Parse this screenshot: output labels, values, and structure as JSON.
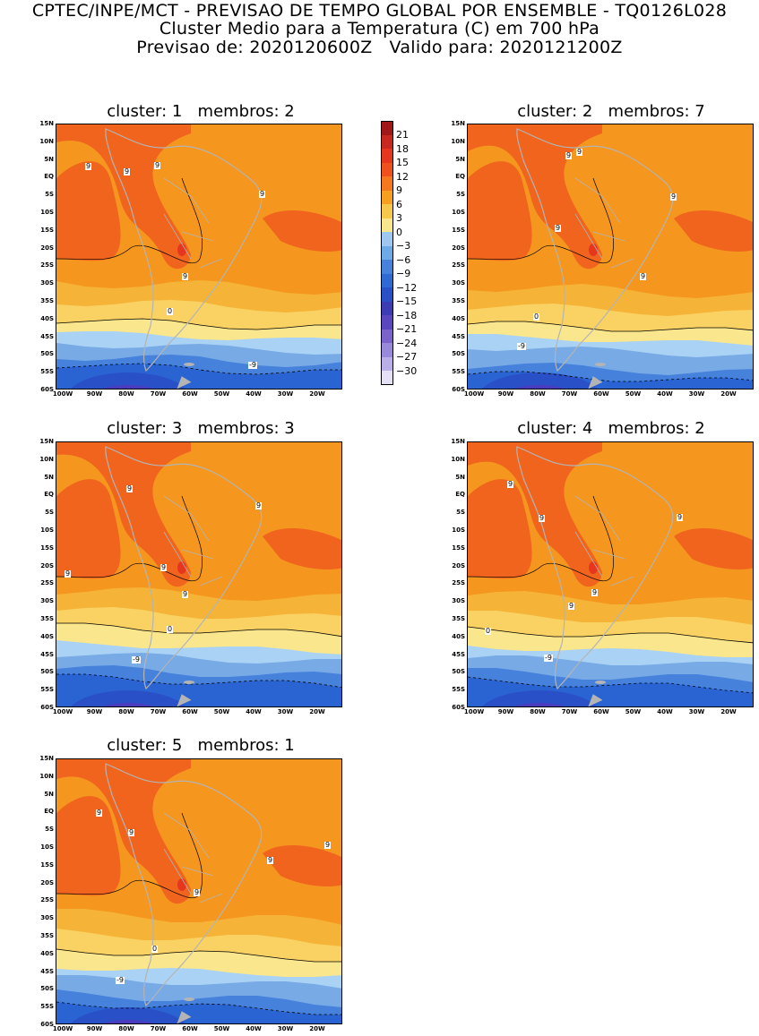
{
  "header": {
    "line1": "CPTEC/INPE/MCT - PREVISAO DE TEMPO GLOBAL POR ENSEMBLE - TQ0126L028",
    "line2": "Cluster Medio para a Temperatura (C) em 700 hPa",
    "line3": "Previsao de: 2020120600Z   Valido para: 2020121200Z"
  },
  "panels": [
    {
      "title": "cluster: 1   membros: 2"
    },
    {
      "title": "cluster: 2   membros: 7"
    },
    {
      "title": "cluster: 3   membros: 3"
    },
    {
      "title": "cluster: 4   membros: 2"
    },
    {
      "title": "cluster: 5   membros: 1"
    }
  ],
  "axes": {
    "lat_labels": [
      "15N",
      "10N",
      "5N",
      "EQ",
      "5S",
      "10S",
      "15S",
      "20S",
      "25S",
      "30S",
      "35S",
      "40S",
      "45S",
      "50S",
      "55S",
      "60S"
    ],
    "lon_labels": [
      "100W",
      "90W",
      "80W",
      "70W",
      "60W",
      "50W",
      "40W",
      "30W",
      "20W"
    ]
  },
  "colorbar": {
    "labels": [
      "21",
      "18",
      "15",
      "12",
      "9",
      "6",
      "3",
      "0",
      "-3",
      "-6",
      "-9",
      "-12",
      "-15",
      "-18",
      "-21",
      "-24",
      "-27",
      "-30"
    ],
    "colors": [
      "#a01818",
      "#c8281e",
      "#e6371e",
      "#f0501e",
      "#f5781e",
      "#f5a01e",
      "#f5c84b",
      "#fae68c",
      "#9ec8f0",
      "#6eaae6",
      "#4682dc",
      "#2f69d2",
      "#2a50c8",
      "#3c3cb4",
      "#5a46be",
      "#7a64cc",
      "#9a88dc",
      "#bcaee8",
      "#e6e0f6"
    ]
  },
  "map_colors": {
    "band_12": "#f0641e",
    "band_15": "#e6371e",
    "band_9": "#f5961e",
    "band_6": "#f5b437",
    "band_3": "#fad264",
    "band_0": "#fae68c",
    "band_m3": "#aad2f5",
    "band_m6": "#78aae6",
    "band_m9": "#4682dc",
    "band_m12": "#2a64d2",
    "band_m15": "#2a50c8",
    "band_m18": "#4a3cbe",
    "land_outline": "#b4b4b4"
  },
  "contour_labels": [
    "9",
    "9",
    "9",
    "9",
    "9",
    "0",
    "-9"
  ]
}
